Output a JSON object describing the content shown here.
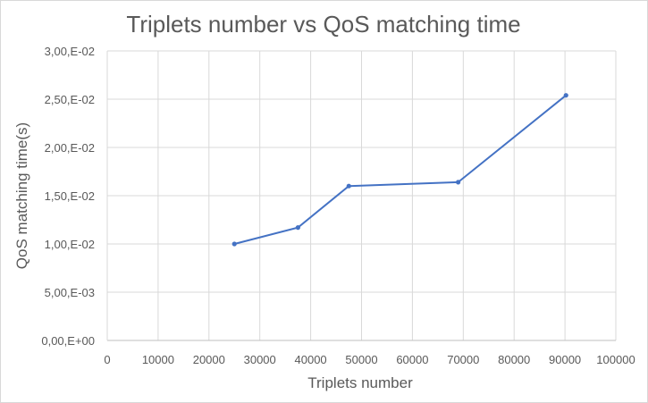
{
  "chart_data": {
    "type": "line",
    "title": "Triplets number vs QoS matching time",
    "xlabel": "Triplets number",
    "ylabel": "QoS matching time(s)",
    "xlim": [
      0,
      100000
    ],
    "ylim": [
      0,
      0.03
    ],
    "x_ticks": [
      0,
      10000,
      20000,
      30000,
      40000,
      50000,
      60000,
      70000,
      80000,
      90000,
      100000
    ],
    "x_tick_labels": [
      "0",
      "10000",
      "20000",
      "30000",
      "40000",
      "50000",
      "60000",
      "70000",
      "80000",
      "90000",
      "100000"
    ],
    "y_ticks": [
      0,
      0.005,
      0.01,
      0.015,
      0.02,
      0.025,
      0.03
    ],
    "y_tick_labels": [
      "0,00,E+00",
      "5,00,E-03",
      "1,00,E-02",
      "1,50,E-02",
      "2,00,E-02",
      "2,50,E-02",
      "3,00,E-02"
    ],
    "grid": true,
    "legend": "none",
    "series": [
      {
        "color": "#4472c4",
        "x": [
          25000,
          37500,
          47500,
          69000,
          90200
        ],
        "y": [
          0.01,
          0.0117,
          0.016,
          0.0164,
          0.0254
        ]
      }
    ]
  }
}
